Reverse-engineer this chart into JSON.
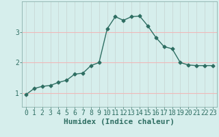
{
  "xlabel": "Humidex (Indice chaleur)",
  "x": [
    0,
    1,
    2,
    3,
    4,
    5,
    6,
    7,
    8,
    9,
    10,
    11,
    12,
    13,
    14,
    15,
    16,
    17,
    18,
    19,
    20,
    21,
    22,
    23
  ],
  "y": [
    0.95,
    1.15,
    1.22,
    1.25,
    1.35,
    1.42,
    1.62,
    1.65,
    1.9,
    2.0,
    3.1,
    3.5,
    3.38,
    3.5,
    3.52,
    3.2,
    2.82,
    2.52,
    2.45,
    2.0,
    1.92,
    1.9,
    1.9,
    1.9
  ],
  "line_color": "#2e6e62",
  "marker": "D",
  "marker_size": 2.5,
  "bg_color": "#d6eeec",
  "grid_x_color": "#c8d8d6",
  "grid_y_color": "#f0b8b8",
  "tick_color": "#2e6e62",
  "xlim": [
    -0.5,
    23.5
  ],
  "ylim": [
    0.55,
    4.0
  ],
  "yticks": [
    1,
    2,
    3
  ],
  "xticks": [
    0,
    1,
    2,
    3,
    4,
    5,
    6,
    7,
    8,
    9,
    10,
    11,
    12,
    13,
    14,
    15,
    16,
    17,
    18,
    19,
    20,
    21,
    22,
    23
  ],
  "xlabel_fontsize": 8,
  "tick_fontsize": 7,
  "linewidth": 1.0
}
